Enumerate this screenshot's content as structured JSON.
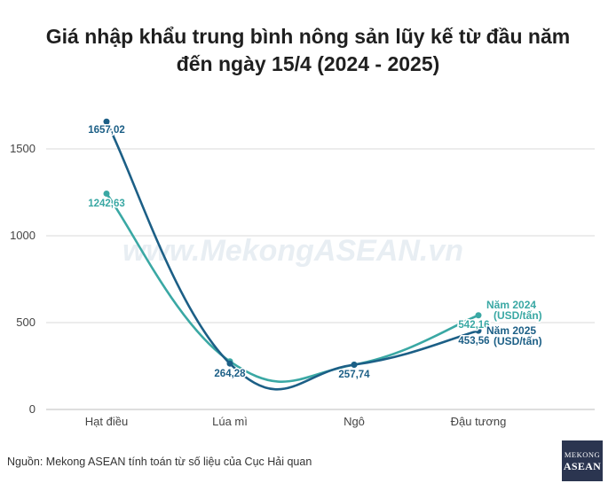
{
  "title_line1": "Giá nhập khẩu trung bình nông sản lũy kế từ đầu năm",
  "title_line2": "đến ngày 15/4 (2024 - 2025)",
  "watermark": "www.MekongASEAN.vn",
  "source": "Nguồn: Mekong ASEAN tính toán từ số liệu của Cục Hải quan",
  "logo": {
    "line1": "MEKONG",
    "line2": "ASEAN"
  },
  "colors": {
    "series_2024": "#3aa8a4",
    "series_2025": "#1c5f86",
    "grid": "#d9d9d9",
    "text": "#444444"
  },
  "chart_data": {
    "type": "line",
    "categories": [
      "Hạt điều",
      "Lúa mì",
      "Ngô",
      "Đậu tương"
    ],
    "ylim": [
      0,
      1800
    ],
    "yticks": [
      0,
      500,
      1000,
      1500
    ],
    "ytick_labels": [
      "0",
      "500",
      "1000",
      "1500"
    ],
    "grid": true,
    "series": [
      {
        "name_line1": "Năm 2024",
        "name_line2": "(USD/tấn)",
        "values": [
          1242.63,
          277,
          257.74,
          542.16
        ],
        "value_labels": [
          "1242,63",
          "",
          "",
          "542,16"
        ]
      },
      {
        "name_line1": "Năm 2025",
        "name_line2": "(USD/tấn)",
        "values": [
          1657.02,
          264.28,
          257.74,
          453.56
        ],
        "value_labels": [
          "1657,02",
          "264,28",
          "257,74",
          "453,56"
        ]
      }
    ]
  }
}
